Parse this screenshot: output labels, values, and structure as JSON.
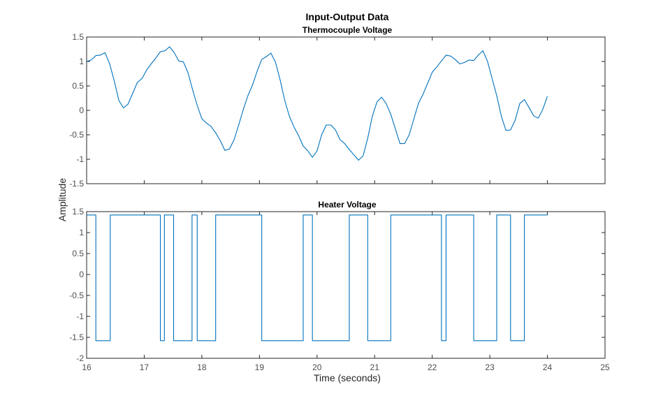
{
  "figure": {
    "title": "Input-Output Data",
    "ylabel": "Amplitude",
    "xlabel": "Time (seconds)",
    "line_color": "#0072BD"
  },
  "chart_data": [
    {
      "type": "line",
      "title": "Thermocouple Voltage",
      "xlabel": "Time (seconds)",
      "ylabel": "Amplitude",
      "xlim": [
        16,
        25
      ],
      "ylim": [
        -1.5,
        1.5
      ],
      "xticks": [
        16,
        17,
        18,
        19,
        20,
        21,
        22,
        23,
        24,
        25
      ],
      "xtick_labels": [
        "",
        "",
        "",
        "",
        "",
        "",
        "",
        "",
        "",
        ""
      ],
      "yticks": [
        -1.5,
        -1,
        -0.5,
        0,
        0.5,
        1,
        1.5
      ],
      "ytick_labels": [
        "-1.5",
        "-1",
        "-0.5",
        "0",
        "0.5",
        "1",
        "1.5"
      ],
      "grid": false,
      "series": [
        {
          "name": "",
          "x": [
            16.0,
            16.08,
            16.16,
            16.24,
            16.32,
            16.4,
            16.48,
            16.56,
            16.64,
            16.72,
            16.8,
            16.88,
            16.96,
            17.04,
            17.12,
            17.2,
            17.28,
            17.36,
            17.44,
            17.52,
            17.6,
            17.68,
            17.76,
            17.84,
            17.92,
            18.0,
            18.08,
            18.16,
            18.24,
            18.32,
            18.4,
            18.48,
            18.56,
            18.64,
            18.72,
            18.8,
            18.88,
            18.96,
            19.04,
            19.12,
            19.2,
            19.28,
            19.36,
            19.44,
            19.52,
            19.6,
            19.68,
            19.76,
            19.84,
            19.92,
            20.0,
            20.08,
            20.16,
            20.24,
            20.32,
            20.4,
            20.48,
            20.56,
            20.64,
            20.72,
            20.8,
            20.88,
            20.96,
            21.04,
            21.12,
            21.2,
            21.28,
            21.36,
            21.44,
            21.52,
            21.6,
            21.68,
            21.76,
            21.84,
            21.92,
            22.0,
            22.08,
            22.16,
            22.24,
            22.32,
            22.4,
            22.48,
            22.56,
            22.64,
            22.72,
            22.8,
            22.88,
            22.96,
            23.04,
            23.12,
            23.2,
            23.28,
            23.36,
            23.44,
            23.52,
            23.6,
            23.68,
            23.76,
            23.84,
            23.92,
            24.0
          ],
          "y": [
            1.0,
            1.03,
            1.12,
            1.13,
            1.18,
            0.95,
            0.6,
            0.2,
            0.05,
            0.13,
            0.35,
            0.57,
            0.65,
            0.82,
            0.95,
            1.07,
            1.2,
            1.22,
            1.3,
            1.18,
            1.01,
            0.99,
            0.77,
            0.42,
            0.1,
            -0.17,
            -0.26,
            -0.33,
            -0.46,
            -0.62,
            -0.82,
            -0.79,
            -0.6,
            -0.3,
            0.02,
            0.3,
            0.52,
            0.8,
            1.04,
            1.1,
            1.17,
            0.98,
            0.62,
            0.2,
            -0.12,
            -0.34,
            -0.52,
            -0.73,
            -0.83,
            -0.96,
            -0.83,
            -0.5,
            -0.3,
            -0.3,
            -0.4,
            -0.6,
            -0.68,
            -0.8,
            -0.91,
            -1.02,
            -0.93,
            -0.57,
            -0.12,
            0.17,
            0.27,
            0.14,
            -0.08,
            -0.38,
            -0.68,
            -0.68,
            -0.5,
            -0.18,
            0.14,
            0.33,
            0.55,
            0.78,
            0.89,
            1.01,
            1.13,
            1.11,
            1.04,
            0.95,
            0.98,
            1.03,
            1.02,
            1.13,
            1.22,
            1.0,
            0.65,
            0.3,
            -0.12,
            -0.41,
            -0.4,
            -0.2,
            0.14,
            0.22,
            0.06,
            -0.11,
            -0.16,
            0.02,
            0.29
          ]
        }
      ]
    },
    {
      "type": "line",
      "title": "Heater Voltage",
      "xlabel": "Time (seconds)",
      "ylabel": "Amplitude",
      "xlim": [
        16,
        25
      ],
      "ylim": [
        -2,
        1.5
      ],
      "xticks": [
        16,
        17,
        18,
        19,
        20,
        21,
        22,
        23,
        24,
        25
      ],
      "xtick_labels": [
        "16",
        "17",
        "18",
        "19",
        "20",
        "21",
        "22",
        "23",
        "24",
        "25"
      ],
      "yticks": [
        -2,
        -1.5,
        -1,
        -0.5,
        0,
        0.5,
        1,
        1.5
      ],
      "ytick_labels": [
        "-2",
        "-1.5",
        "-1",
        "-0.5",
        "0",
        "0.5",
        "1",
        "1.5"
      ],
      "grid": false,
      "series": [
        {
          "name": "",
          "step": true,
          "high": 1.42,
          "low": -1.58,
          "x": [
            16.0,
            16.16,
            16.16,
            16.41,
            16.41,
            17.28,
            17.28,
            17.35,
            17.35,
            17.51,
            17.51,
            17.83,
            17.83,
            17.92,
            17.92,
            18.24,
            18.24,
            19.04,
            19.04,
            19.76,
            19.76,
            19.92,
            19.92,
            20.56,
            20.56,
            20.88,
            20.88,
            21.28,
            21.28,
            22.16,
            22.16,
            22.24,
            22.24,
            22.72,
            22.72,
            23.12,
            23.12,
            23.36,
            23.36,
            23.6,
            23.6,
            24.0
          ],
          "y": [
            1.42,
            1.42,
            -1.58,
            -1.58,
            1.42,
            1.42,
            -1.58,
            -1.58,
            1.42,
            1.42,
            -1.58,
            -1.58,
            1.42,
            1.42,
            -1.58,
            -1.58,
            1.42,
            1.42,
            -1.58,
            -1.58,
            1.42,
            1.42,
            -1.58,
            -1.58,
            1.42,
            1.42,
            -1.58,
            -1.58,
            1.42,
            1.42,
            -1.58,
            -1.58,
            1.42,
            1.42,
            -1.58,
            -1.58,
            1.42,
            1.42,
            -1.58,
            -1.58,
            1.42,
            1.42
          ]
        }
      ]
    }
  ]
}
